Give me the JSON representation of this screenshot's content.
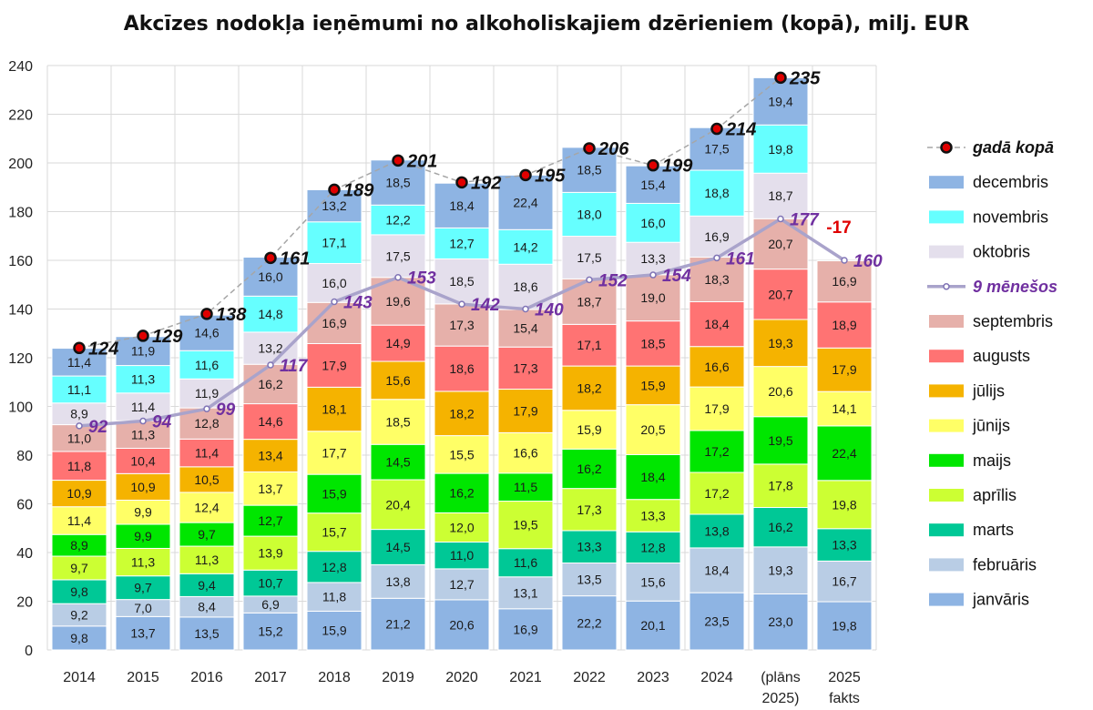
{
  "title": "Akcīzes nodokļa ieņēmumi no alkoholiskajiem dzērieniem (kopā), milj. EUR",
  "chart_data": {
    "type": "bar",
    "stacked": true,
    "title": "Akcīzes nodokļa ieņēmumi no alkoholiskajiem dzērieniem (kopā), milj. EUR",
    "xlabel": "",
    "ylabel": "",
    "ylim": [
      0,
      240
    ],
    "yticks": [
      0,
      20,
      40,
      60,
      80,
      100,
      120,
      140,
      160,
      180,
      200,
      220,
      240
    ],
    "grid": true,
    "legend_position": "right",
    "categories": [
      "2014",
      "2015",
      "2016",
      "2017",
      "2018",
      "2019",
      "2020",
      "2021",
      "2022",
      "2023",
      "2024",
      "(plāns 2025)",
      "2025 fakts"
    ],
    "series": [
      {
        "name": "janvāris",
        "color": "#8EB4E3",
        "values": [
          9.8,
          13.7,
          13.5,
          15.2,
          15.9,
          21.2,
          20.6,
          16.9,
          22.2,
          20.1,
          23.5,
          23.0,
          19.8
        ]
      },
      {
        "name": "februāris",
        "color": "#B9CDE5",
        "values": [
          9.2,
          7.0,
          8.4,
          6.9,
          11.8,
          13.8,
          12.7,
          13.1,
          13.5,
          15.6,
          18.4,
          19.3,
          16.7
        ]
      },
      {
        "name": "marts",
        "color": "#00C896",
        "values": [
          9.8,
          9.7,
          9.4,
          10.7,
          12.8,
          14.5,
          11.0,
          11.6,
          13.3,
          12.8,
          13.8,
          16.2,
          13.3
        ]
      },
      {
        "name": "aprīlis",
        "color": "#CCFF33",
        "values": [
          9.7,
          11.3,
          11.3,
          13.9,
          15.7,
          20.4,
          12.0,
          19.5,
          17.3,
          13.3,
          17.2,
          17.8,
          19.8
        ]
      },
      {
        "name": "maijs",
        "color": "#00E600",
        "values": [
          8.9,
          9.9,
          9.7,
          12.7,
          15.9,
          14.5,
          16.2,
          11.5,
          16.2,
          18.4,
          17.2,
          19.5,
          22.4
        ]
      },
      {
        "name": "jūnijs",
        "color": "#FFFF66",
        "values": [
          11.4,
          9.9,
          12.4,
          13.7,
          17.7,
          18.5,
          15.5,
          16.6,
          15.9,
          20.5,
          17.9,
          20.6,
          14.1
        ]
      },
      {
        "name": "jūlijs",
        "color": "#F5B300",
        "values": [
          10.9,
          10.9,
          10.5,
          13.4,
          18.1,
          15.6,
          18.2,
          17.9,
          18.2,
          15.9,
          16.6,
          19.3,
          17.9
        ]
      },
      {
        "name": "augusts",
        "color": "#FF7373",
        "values": [
          11.8,
          10.4,
          11.4,
          14.6,
          17.9,
          14.9,
          18.6,
          17.3,
          17.1,
          18.5,
          18.4,
          20.7,
          18.9
        ]
      },
      {
        "name": "septembris",
        "color": "#E6B0AA",
        "values": [
          11.0,
          11.3,
          12.8,
          16.2,
          16.9,
          19.6,
          17.3,
          15.4,
          18.7,
          19.0,
          18.3,
          20.7,
          16.9
        ]
      },
      {
        "name": "oktobris",
        "color": "#E4DFEC",
        "values": [
          8.9,
          11.4,
          11.9,
          13.2,
          16.0,
          17.5,
          18.5,
          18.6,
          17.5,
          13.3,
          16.9,
          18.7,
          null
        ]
      },
      {
        "name": "novembris",
        "color": "#66FFFF",
        "values": [
          11.1,
          11.3,
          11.6,
          14.8,
          17.1,
          12.2,
          12.7,
          14.2,
          18.0,
          16.0,
          18.8,
          19.8,
          null
        ]
      },
      {
        "name": "decembris",
        "color": "#8EB4E3",
        "values": [
          11.4,
          11.9,
          14.6,
          16.0,
          13.2,
          18.5,
          18.4,
          22.4,
          18.5,
          15.4,
          17.5,
          19.4,
          null
        ]
      }
    ],
    "line_series": [
      {
        "name": "gadā kopā",
        "style": "dashed",
        "color": "#A6A6A6",
        "marker_color": "#E00000",
        "values": [
          124,
          129,
          138,
          161,
          189,
          201,
          192,
          195,
          206,
          199,
          214,
          235,
          null
        ],
        "labels": [
          "124",
          "129",
          "138",
          "161",
          "189",
          "201",
          "192",
          "195",
          "206",
          "199",
          "214",
          "235",
          ""
        ]
      },
      {
        "name": "9 mēnešos",
        "style": "solid",
        "color": "#A9A3CB",
        "label_color": "#7030A0",
        "values": [
          92,
          94,
          99,
          117,
          143,
          153,
          142,
          140,
          152,
          154,
          161,
          177,
          160
        ],
        "labels": [
          "92",
          "94",
          "99",
          "117",
          "143",
          "153",
          "142",
          "140",
          "152",
          "154",
          "161",
          "177",
          "160"
        ]
      }
    ],
    "annotations": [
      {
        "text": "-17",
        "color": "#E00000",
        "category": "2025 fakts"
      }
    ]
  }
}
